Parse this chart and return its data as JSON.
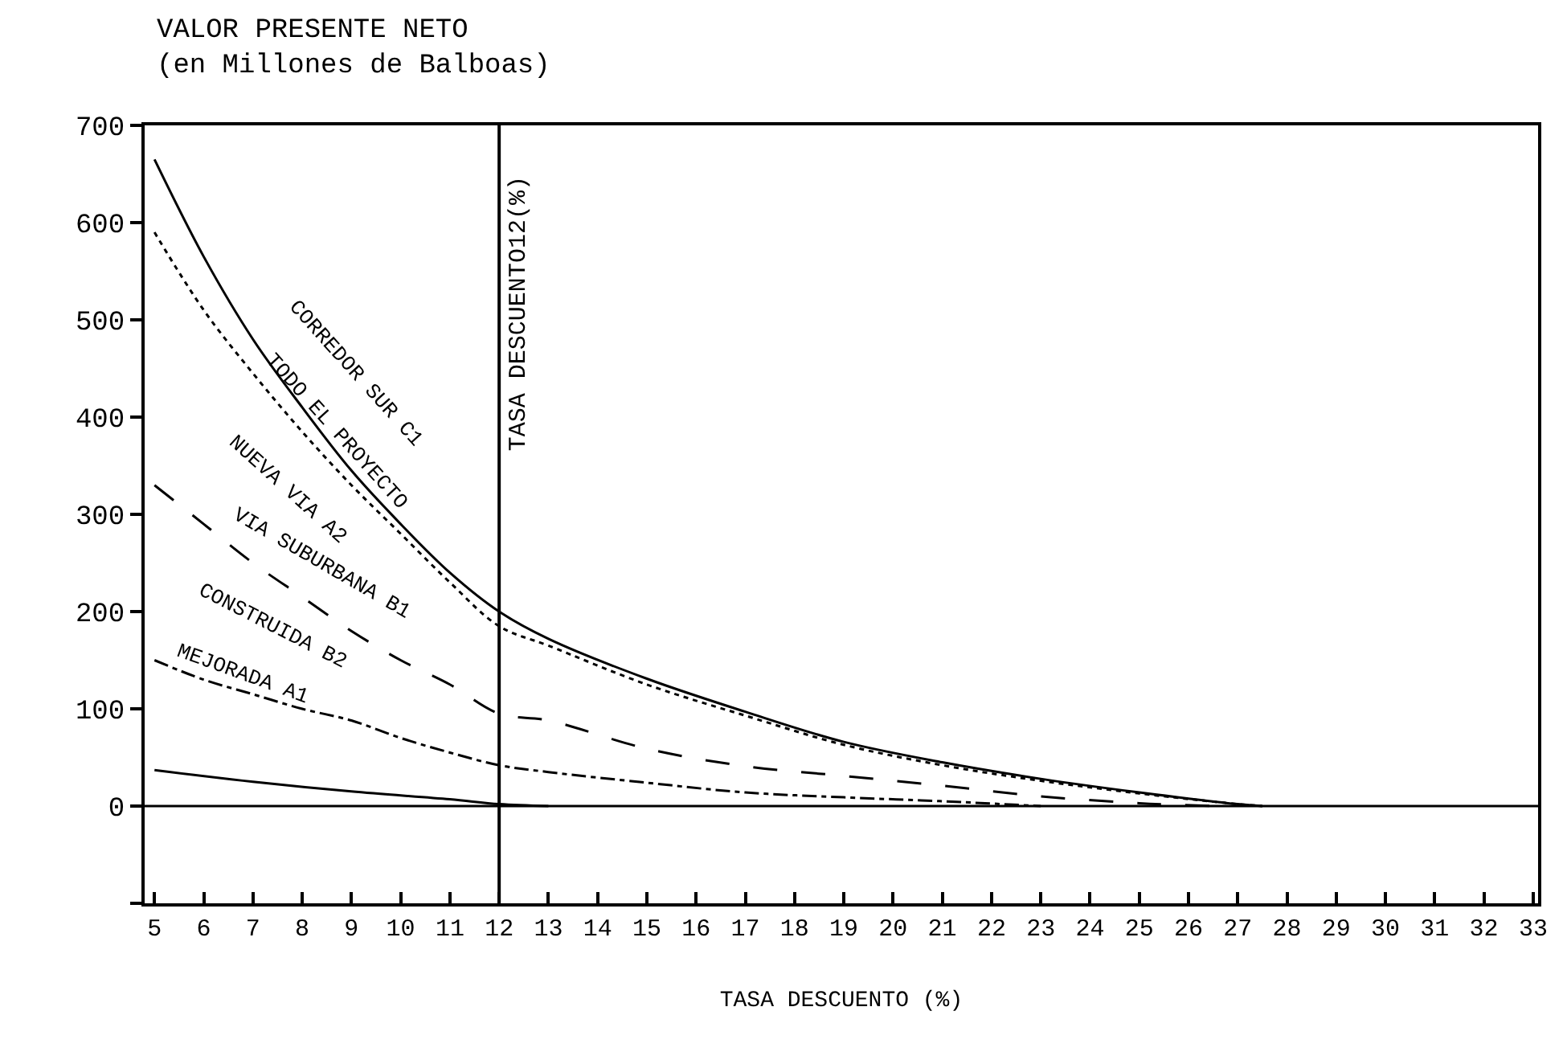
{
  "chart_data": {
    "type": "line",
    "title": "VALOR PRESENTE NETO",
    "subtitle": "(en Millones de Balboas)",
    "xlabel": "TASA DESCUENTO (%)",
    "xlim": [
      4.8,
      33.1
    ],
    "xticks": [
      5,
      6,
      7,
      8,
      9,
      10,
      11,
      12,
      13,
      14,
      15,
      16,
      17,
      18,
      19,
      20,
      21,
      22,
      23,
      24,
      25,
      26,
      27,
      28,
      29,
      30,
      31,
      32,
      33
    ],
    "ylim": [
      -100,
      700
    ],
    "yticks": [
      {
        "value": -100,
        "label": null
      },
      0,
      100,
      200,
      300,
      400,
      500,
      600,
      700
    ],
    "marker": "none",
    "series": [
      {
        "color": "#000000",
        "line_style": "solid",
        "x": [
          5,
          6,
          7,
          8,
          9,
          10,
          11,
          12,
          13,
          15,
          17,
          19,
          21,
          23,
          25,
          27,
          27.5
        ],
        "values": [
          665,
          565,
          480,
          410,
          345,
          290,
          240,
          200,
          172,
          131,
          97,
          66,
          45,
          28,
          14,
          2,
          0
        ]
      },
      {
        "color": "#000000",
        "line_style": "dotted",
        "x": [
          5,
          6,
          7,
          8,
          9,
          10,
          11,
          12,
          13,
          15,
          17,
          19,
          21,
          23,
          25,
          27,
          27.5
        ],
        "values": [
          590,
          510,
          445,
          385,
          330,
          280,
          230,
          185,
          165,
          125,
          93,
          63,
          42,
          26,
          13,
          2,
          0
        ]
      },
      {
        "color": "#000000",
        "line_style": "dashed",
        "x": [
          5,
          6,
          7,
          8,
          9,
          10,
          11,
          12,
          13,
          15,
          17,
          19,
          21,
          23,
          25,
          26.5
        ],
        "values": [
          330,
          290,
          250,
          215,
          180,
          150,
          125,
          95,
          88,
          59,
          41,
          31,
          21,
          10,
          3,
          0
        ]
      },
      {
        "color": "#000000",
        "line_style": "dashdot",
        "x": [
          5,
          6,
          7,
          8,
          9,
          10,
          11,
          12,
          13,
          15,
          17,
          19,
          21,
          23
        ],
        "values": [
          150,
          130,
          115,
          100,
          88,
          70,
          55,
          42,
          35,
          24,
          14,
          9,
          5,
          0
        ]
      },
      {
        "color": "#000000",
        "line_style": "solid",
        "x": [
          5,
          7,
          9,
          11,
          12,
          13
        ],
        "values": [
          37,
          25,
          15,
          7,
          2,
          0
        ]
      }
    ],
    "ref_lines": [
      {
        "axis": "x",
        "value": 12,
        "label": "TASA DESCUENTO12(%)",
        "color": "#000000"
      },
      {
        "axis": "y",
        "value": 0,
        "color": "#000000"
      }
    ],
    "annotations": [
      "CORREDOR SUR C1",
      "TODO EL PROYECTO",
      "NUEVA VIA A2",
      "VIA SUBURBANA B1",
      "CONSTRUIDA B2",
      "MEJORADA A1"
    ]
  }
}
